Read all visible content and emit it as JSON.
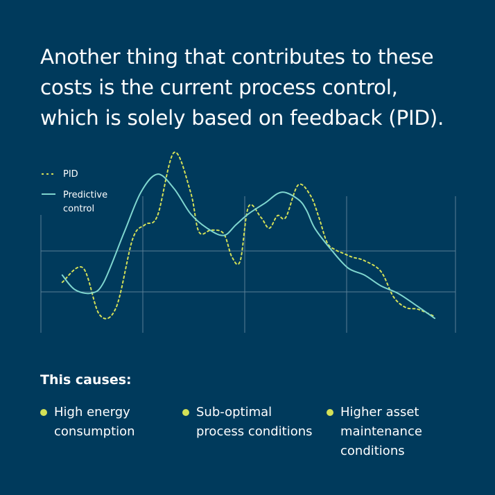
{
  "headline": {
    "line1": "Another thing that contributes to these",
    "line2": "costs is the current process control,",
    "line3": "which is solely based on feedback (PID)."
  },
  "chart_data": {
    "type": "line",
    "title": "",
    "xlabel": "",
    "ylabel": "",
    "xlim": [
      0,
      100
    ],
    "ylim": [
      0,
      100
    ],
    "grid": true,
    "legend": "top-left",
    "series": [
      {
        "name": "PID",
        "style": "dashed",
        "color": "#d4e157",
        "x": [
          5,
          10,
          14,
          18,
          22,
          25,
          28,
          32,
          36,
          38,
          41,
          44,
          46,
          48,
          50,
          53,
          55,
          57,
          59,
          62,
          65,
          67,
          69,
          71,
          73,
          75,
          78,
          82,
          85,
          88,
          91,
          95
        ],
        "y": [
          28,
          36,
          10,
          14,
          52,
          60,
          65,
          100,
          78,
          56,
          57,
          55,
          42,
          40,
          70,
          64,
          58,
          65,
          64,
          82,
          76,
          64,
          50,
          46,
          44,
          42,
          40,
          34,
          20,
          14,
          13,
          9
        ]
      },
      {
        "name": "Predictive control",
        "style": "solid",
        "color": "#7fd6cf",
        "x": [
          5,
          8,
          12,
          15,
          20,
          24,
          28,
          32,
          36,
          40,
          44,
          47,
          50,
          54,
          58,
          62,
          64,
          66,
          70,
          74,
          78,
          82,
          86,
          90,
          95
        ],
        "y": [
          32,
          24,
          22,
          28,
          56,
          78,
          88,
          80,
          66,
          58,
          54,
          60,
          66,
          72,
          78,
          74,
          68,
          58,
          46,
          36,
          32,
          26,
          22,
          16,
          8
        ]
      }
    ]
  },
  "causes": {
    "title": "This causes:",
    "items": [
      {
        "lines": [
          "High energy",
          "consumption"
        ]
      },
      {
        "lines": [
          "Sub-optimal",
          "process conditions"
        ]
      },
      {
        "lines": [
          "Higher asset",
          "maintenance",
          "conditions"
        ]
      }
    ]
  },
  "colors": {
    "background": "#003a5c",
    "accent": "#d4e157",
    "predictive": "#7fd6cf",
    "grid": "#5a7f96"
  }
}
